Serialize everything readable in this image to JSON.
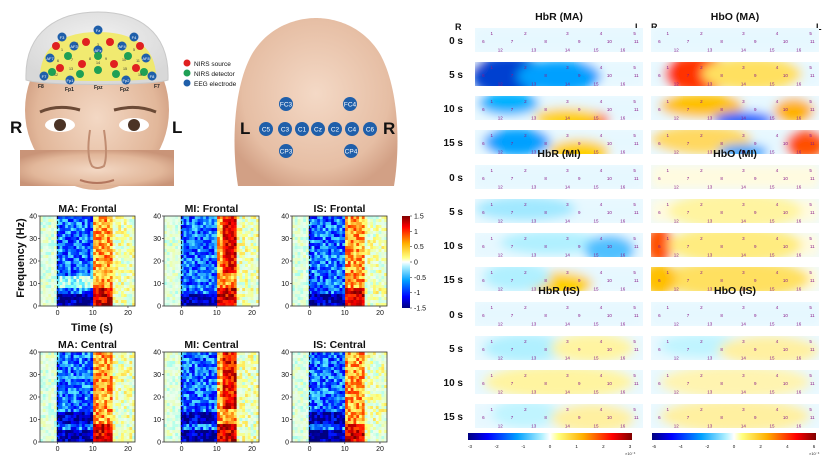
{
  "montage": {
    "legend": [
      {
        "label": "NIRS source",
        "color": "#e02020"
      },
      {
        "label": "NIRS detector",
        "color": "#1fa055"
      },
      {
        "label": "EEG electrode",
        "color": "#1f5faa"
      }
    ],
    "front_left_label": "R",
    "front_right_label": "L",
    "back_left_label": "L",
    "back_right_label": "R",
    "front_nirs_labels": [
      "1",
      "2",
      "3",
      "4",
      "5",
      "6",
      "7",
      "8",
      "9",
      "10",
      "11",
      "12",
      "13",
      "14",
      "15",
      "16"
    ],
    "front_eeg_labels": [
      "Fz",
      "F3",
      "F4",
      "AFz",
      "AF3",
      "AF4",
      "AF7",
      "AF8",
      "F7",
      "F8",
      "Fp1",
      "Fp2"
    ],
    "front_visible_labels": [
      "F8",
      "Fp1",
      "Fpz",
      "Fp2",
      "F7"
    ],
    "back_eeg_labels": [
      "FC3",
      "FC4",
      "C5",
      "C3",
      "C1",
      "Cz",
      "C2",
      "C4",
      "C6",
      "CP3",
      "CP4"
    ]
  },
  "spectrograms": {
    "row1_titles": [
      "MA: Frontal",
      "MI: Frontal",
      "IS: Frontal"
    ],
    "row2_titles": [
      "MA: Central",
      "MI: Central",
      "IS: Central"
    ],
    "ylabel": "Frequency (Hz)",
    "xlabel": "Time (s)",
    "yticks": [
      "40",
      "30",
      "20",
      "10",
      "0"
    ],
    "xticks": [
      "0",
      "10",
      "20"
    ],
    "colorbar_ticks": [
      "1.5",
      "1",
      "0.5",
      "0",
      "-0.5",
      "-1",
      "-1.5"
    ]
  },
  "topomaps": {
    "hemo_left_label": "R",
    "hemo_right_label": "L",
    "sections": [
      {
        "titles": [
          "HbR (MA)",
          "HbO (MA)"
        ]
      },
      {
        "titles": [
          "HbR (MI)",
          "HbO (MI)"
        ]
      },
      {
        "titles": [
          "HbR (IS)",
          "HbO (IS)"
        ]
      }
    ],
    "time_labels": [
      "0 s",
      "5 s",
      "10 s",
      "15 s"
    ],
    "channel_numbers": [
      "1",
      "2",
      "3",
      "4",
      "5",
      "6",
      "7",
      "8",
      "9",
      "10",
      "11",
      "12",
      "13",
      "14",
      "15",
      "16"
    ],
    "colorbar_left_ticks": [
      "-3",
      "-2",
      "-1",
      "0",
      "1",
      "2",
      "3"
    ],
    "colorbar_right_ticks": [
      "-6",
      "-4",
      "-2",
      "0",
      "2",
      "4",
      "6"
    ],
    "colorbar_exponent": "×10⁻³"
  },
  "chart_data": [
    {
      "type": "heatmap",
      "title": "MA: Frontal",
      "xlabel": "Time (s)",
      "ylabel": "Frequency (Hz)",
      "xlim": [
        -5,
        22
      ],
      "ylim": [
        0,
        40
      ],
      "clim": [
        -1.5,
        1.5
      ]
    },
    {
      "type": "heatmap",
      "title": "MI: Frontal",
      "xlabel": "Time (s)",
      "ylabel": "Frequency (Hz)",
      "xlim": [
        -5,
        22
      ],
      "ylim": [
        0,
        40
      ],
      "clim": [
        -1.5,
        1.5
      ]
    },
    {
      "type": "heatmap",
      "title": "IS: Frontal",
      "xlabel": "Time (s)",
      "ylabel": "Frequency (Hz)",
      "xlim": [
        -5,
        22
      ],
      "ylim": [
        0,
        40
      ],
      "clim": [
        -1.5,
        1.5
      ]
    },
    {
      "type": "heatmap",
      "title": "MA: Central",
      "xlabel": "Time (s)",
      "ylabel": "Frequency (Hz)",
      "xlim": [
        -5,
        22
      ],
      "ylim": [
        0,
        40
      ],
      "clim": [
        -1.5,
        1.5
      ]
    },
    {
      "type": "heatmap",
      "title": "MI: Central",
      "xlabel": "Time (s)",
      "ylabel": "Frequency (Hz)",
      "xlim": [
        -5,
        22
      ],
      "ylim": [
        0,
        40
      ],
      "clim": [
        -1.5,
        1.5
      ]
    },
    {
      "type": "heatmap",
      "title": "IS: Central",
      "xlabel": "Time (s)",
      "ylabel": "Frequency (Hz)",
      "xlim": [
        -5,
        22
      ],
      "ylim": [
        0,
        40
      ],
      "clim": [
        -1.5,
        1.5
      ]
    },
    {
      "type": "heatmap",
      "title": "HbR (MA)",
      "categories": [
        "0 s",
        "5 s",
        "10 s",
        "15 s"
      ],
      "clim": [
        -3,
        3
      ]
    },
    {
      "type": "heatmap",
      "title": "HbO (MA)",
      "categories": [
        "0 s",
        "5 s",
        "10 s",
        "15 s"
      ],
      "clim": [
        -6,
        6
      ]
    },
    {
      "type": "heatmap",
      "title": "HbR (MI)",
      "categories": [
        "0 s",
        "5 s",
        "10 s",
        "15 s"
      ],
      "clim": [
        -3,
        3
      ]
    },
    {
      "type": "heatmap",
      "title": "HbO (MI)",
      "categories": [
        "0 s",
        "5 s",
        "10 s",
        "15 s"
      ],
      "clim": [
        -6,
        6
      ]
    },
    {
      "type": "heatmap",
      "title": "HbR (IS)",
      "categories": [
        "0 s",
        "5 s",
        "10 s",
        "15 s"
      ],
      "clim": [
        -3,
        3
      ]
    },
    {
      "type": "heatmap",
      "title": "HbO (IS)",
      "categories": [
        "0 s",
        "5 s",
        "10 s",
        "15 s"
      ],
      "clim": [
        -6,
        6
      ]
    }
  ]
}
